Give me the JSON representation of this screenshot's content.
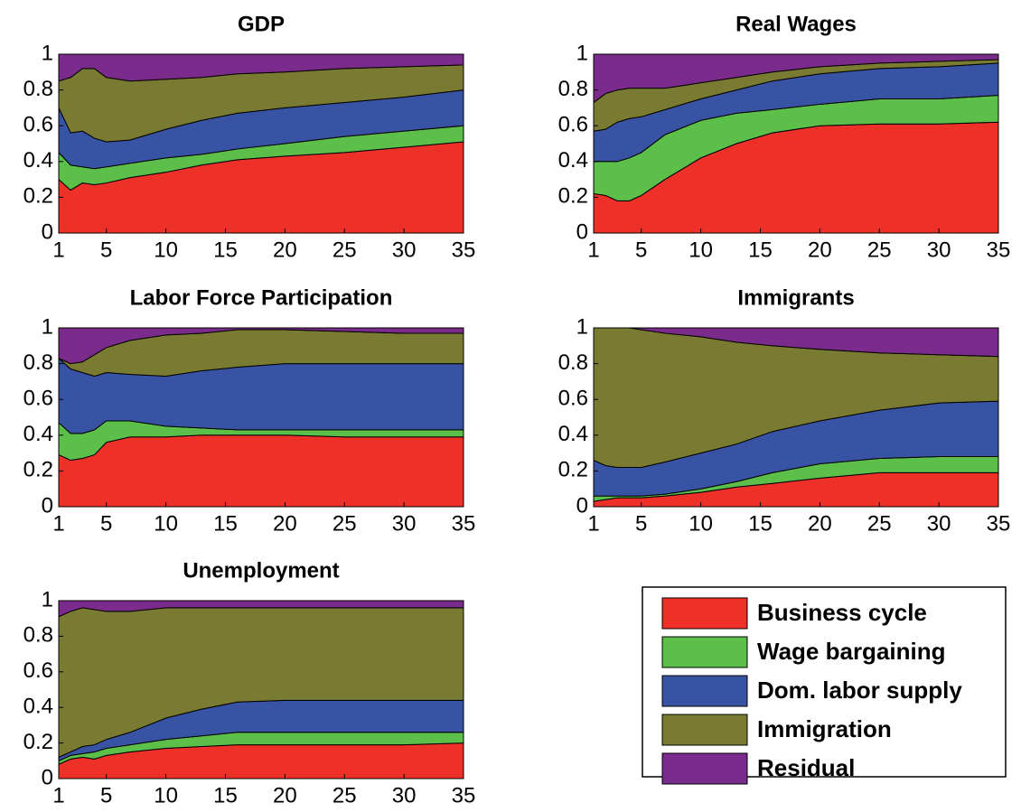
{
  "chart_data": [
    {
      "type": "stacked_area",
      "title": "GDP",
      "x": [
        1,
        2,
        3,
        4,
        5,
        7,
        10,
        13,
        16,
        20,
        25,
        30,
        35
      ],
      "xlim": [
        1,
        35
      ],
      "xticks": [
        1,
        5,
        10,
        15,
        20,
        25,
        30,
        35
      ],
      "ylim": [
        0,
        1
      ],
      "yticks": [
        0,
        0.2,
        0.4,
        0.6,
        0.8,
        1
      ],
      "series": [
        {
          "name": "Business cycle",
          "color": "#ee3128",
          "values": [
            0.3,
            0.24,
            0.28,
            0.27,
            0.28,
            0.31,
            0.34,
            0.38,
            0.41,
            0.43,
            0.45,
            0.48,
            0.51
          ]
        },
        {
          "name": "Wage bargaining",
          "color": "#5bbf4a",
          "values": [
            0.15,
            0.14,
            0.09,
            0.09,
            0.09,
            0.08,
            0.08,
            0.06,
            0.06,
            0.07,
            0.09,
            0.09,
            0.09
          ]
        },
        {
          "name": "Dom. labor supply",
          "color": "#3953a4",
          "values": [
            0.25,
            0.18,
            0.2,
            0.17,
            0.14,
            0.13,
            0.16,
            0.19,
            0.2,
            0.2,
            0.19,
            0.19,
            0.2
          ]
        },
        {
          "name": "Immigration",
          "color": "#7a7b32",
          "values": [
            0.15,
            0.31,
            0.35,
            0.39,
            0.36,
            0.33,
            0.28,
            0.24,
            0.22,
            0.2,
            0.19,
            0.17,
            0.14
          ]
        },
        {
          "name": "Residual",
          "color": "#7b2b8b",
          "values": [
            0.15,
            0.13,
            0.08,
            0.08,
            0.13,
            0.15,
            0.14,
            0.13,
            0.11,
            0.1,
            0.08,
            0.07,
            0.06
          ]
        }
      ]
    },
    {
      "type": "stacked_area",
      "title": "Real Wages",
      "x": [
        1,
        2,
        3,
        4,
        5,
        7,
        10,
        13,
        16,
        20,
        25,
        30,
        35
      ],
      "xlim": [
        1,
        35
      ],
      "xticks": [
        1,
        5,
        10,
        15,
        20,
        25,
        30,
        35
      ],
      "ylim": [
        0,
        1
      ],
      "yticks": [
        0,
        0.2,
        0.4,
        0.6,
        0.8,
        1
      ],
      "series": [
        {
          "name": "Business cycle",
          "color": "#ee3128",
          "values": [
            0.22,
            0.21,
            0.18,
            0.18,
            0.21,
            0.3,
            0.42,
            0.5,
            0.56,
            0.6,
            0.61,
            0.61,
            0.62
          ]
        },
        {
          "name": "Wage bargaining",
          "color": "#5bbf4a",
          "values": [
            0.18,
            0.19,
            0.22,
            0.24,
            0.24,
            0.25,
            0.21,
            0.17,
            0.13,
            0.12,
            0.14,
            0.14,
            0.15
          ]
        },
        {
          "name": "Dom. labor supply",
          "color": "#3953a4",
          "values": [
            0.17,
            0.18,
            0.22,
            0.22,
            0.2,
            0.14,
            0.12,
            0.13,
            0.16,
            0.17,
            0.17,
            0.18,
            0.18
          ]
        },
        {
          "name": "Immigration",
          "color": "#7a7b32",
          "values": [
            0.16,
            0.2,
            0.18,
            0.17,
            0.16,
            0.12,
            0.09,
            0.07,
            0.05,
            0.04,
            0.03,
            0.03,
            0.02
          ]
        },
        {
          "name": "Residual",
          "color": "#7b2b8b",
          "values": [
            0.27,
            0.22,
            0.2,
            0.19,
            0.19,
            0.19,
            0.16,
            0.13,
            0.1,
            0.07,
            0.05,
            0.04,
            0.03
          ]
        }
      ]
    },
    {
      "type": "stacked_area",
      "title": "Labor Force Participation",
      "x": [
        1,
        2,
        3,
        4,
        5,
        7,
        10,
        13,
        16,
        20,
        25,
        30,
        35
      ],
      "xlim": [
        1,
        35
      ],
      "xticks": [
        1,
        5,
        10,
        15,
        20,
        25,
        30,
        35
      ],
      "ylim": [
        0,
        1
      ],
      "yticks": [
        0,
        0.2,
        0.4,
        0.6,
        0.8,
        1
      ],
      "series": [
        {
          "name": "Business cycle",
          "color": "#ee3128",
          "values": [
            0.29,
            0.26,
            0.27,
            0.29,
            0.36,
            0.39,
            0.39,
            0.4,
            0.4,
            0.4,
            0.39,
            0.39,
            0.39
          ]
        },
        {
          "name": "Wage bargaining",
          "color": "#5bbf4a",
          "values": [
            0.18,
            0.15,
            0.14,
            0.14,
            0.12,
            0.09,
            0.06,
            0.04,
            0.03,
            0.03,
            0.04,
            0.04,
            0.04
          ]
        },
        {
          "name": "Dom. labor supply",
          "color": "#3953a4",
          "values": [
            0.36,
            0.36,
            0.34,
            0.3,
            0.27,
            0.26,
            0.28,
            0.32,
            0.35,
            0.37,
            0.37,
            0.37,
            0.37
          ]
        },
        {
          "name": "Immigration",
          "color": "#7a7b32",
          "values": [
            0,
            0.03,
            0.06,
            0.12,
            0.14,
            0.19,
            0.23,
            0.21,
            0.21,
            0.19,
            0.18,
            0.17,
            0.17
          ]
        },
        {
          "name": "Residual",
          "color": "#7b2b8b",
          "values": [
            0.17,
            0.2,
            0.19,
            0.15,
            0.11,
            0.07,
            0.04,
            0.03,
            0.01,
            0.01,
            0.02,
            0.03,
            0.03
          ]
        }
      ]
    },
    {
      "type": "stacked_area",
      "title": "Immigrants",
      "x": [
        1,
        2,
        3,
        4,
        5,
        7,
        10,
        13,
        16,
        20,
        25,
        30,
        35
      ],
      "xlim": [
        1,
        35
      ],
      "xticks": [
        1,
        5,
        10,
        15,
        20,
        25,
        30,
        35
      ],
      "ylim": [
        0,
        1
      ],
      "yticks": [
        0,
        0.2,
        0.4,
        0.6,
        0.8,
        1
      ],
      "series": [
        {
          "name": "Business cycle",
          "color": "#ee3128",
          "values": [
            0.03,
            0.04,
            0.05,
            0.05,
            0.05,
            0.06,
            0.08,
            0.11,
            0.13,
            0.16,
            0.19,
            0.19,
            0.19
          ]
        },
        {
          "name": "Wage bargaining",
          "color": "#5bbf4a",
          "values": [
            0.03,
            0.02,
            0.01,
            0.01,
            0.01,
            0.01,
            0.02,
            0.03,
            0.06,
            0.08,
            0.08,
            0.09,
            0.09
          ]
        },
        {
          "name": "Dom. labor supply",
          "color": "#3953a4",
          "values": [
            0.2,
            0.17,
            0.16,
            0.16,
            0.16,
            0.18,
            0.2,
            0.21,
            0.23,
            0.24,
            0.27,
            0.3,
            0.31
          ]
        },
        {
          "name": "Immigration",
          "color": "#7a7b32",
          "values": [
            0.74,
            0.77,
            0.78,
            0.78,
            0.77,
            0.72,
            0.65,
            0.57,
            0.48,
            0.4,
            0.32,
            0.27,
            0.25
          ]
        },
        {
          "name": "Residual",
          "color": "#7b2b8b",
          "values": [
            0,
            0,
            0,
            0,
            0.01,
            0.03,
            0.05,
            0.08,
            0.1,
            0.12,
            0.14,
            0.15,
            0.16
          ]
        }
      ]
    },
    {
      "type": "stacked_area",
      "title": "Unemployment",
      "x": [
        1,
        2,
        3,
        4,
        5,
        7,
        10,
        13,
        16,
        20,
        25,
        30,
        35
      ],
      "xlim": [
        1,
        35
      ],
      "xticks": [
        1,
        5,
        10,
        15,
        20,
        25,
        30,
        35
      ],
      "ylim": [
        0,
        1
      ],
      "yticks": [
        0,
        0.2,
        0.4,
        0.6,
        0.8,
        1
      ],
      "series": [
        {
          "name": "Business cycle",
          "color": "#ee3128",
          "values": [
            0.08,
            0.11,
            0.12,
            0.11,
            0.13,
            0.15,
            0.17,
            0.18,
            0.19,
            0.19,
            0.19,
            0.19,
            0.2
          ]
        },
        {
          "name": "Wage bargaining",
          "color": "#5bbf4a",
          "values": [
            0.02,
            0.02,
            0.02,
            0.04,
            0.04,
            0.04,
            0.05,
            0.06,
            0.07,
            0.07,
            0.07,
            0.07,
            0.06
          ]
        },
        {
          "name": "Dom. labor supply",
          "color": "#3953a4",
          "values": [
            0.02,
            0.02,
            0.04,
            0.04,
            0.05,
            0.07,
            0.12,
            0.15,
            0.17,
            0.18,
            0.18,
            0.18,
            0.18
          ]
        },
        {
          "name": "Immigration",
          "color": "#7a7b32",
          "values": [
            0.79,
            0.79,
            0.78,
            0.76,
            0.72,
            0.68,
            0.62,
            0.57,
            0.53,
            0.52,
            0.52,
            0.52,
            0.52
          ]
        },
        {
          "name": "Residual",
          "color": "#7b2b8b",
          "values": [
            0.09,
            0.06,
            0.04,
            0.05,
            0.06,
            0.06,
            0.04,
            0.04,
            0.04,
            0.04,
            0.04,
            0.04,
            0.04
          ]
        }
      ]
    }
  ]
}
